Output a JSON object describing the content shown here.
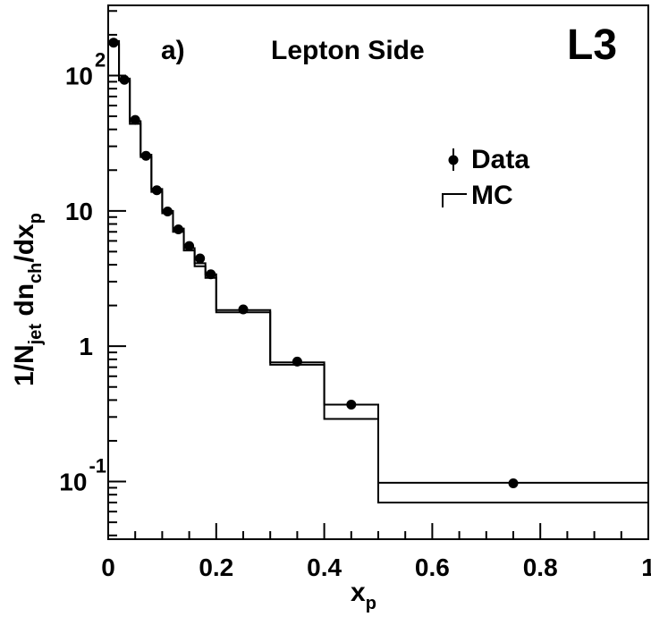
{
  "chart_data": {
    "type": "scatter",
    "panel_label": "a)",
    "title": "Lepton Side",
    "experiment_label": "L3",
    "xlabel": "x",
    "xlabel_sub": "p",
    "ylabel_parts": [
      "1/N",
      "jet",
      " dn",
      "ch",
      "/dx",
      "p"
    ],
    "xlim": [
      0,
      1
    ],
    "ylim": [
      0.0375,
      330
    ],
    "y_scale": "log",
    "grid": false,
    "legend_position": "top-right",
    "x_ticks": [
      {
        "value": 0,
        "label": "0"
      },
      {
        "value": 0.2,
        "label": "0.2"
      },
      {
        "value": 0.4,
        "label": "0.4"
      },
      {
        "value": 0.6,
        "label": "0.6"
      },
      {
        "value": 0.8,
        "label": "0.8"
      },
      {
        "value": 1,
        "label": "1"
      }
    ],
    "y_ticks": [
      {
        "value": 100,
        "label": "10",
        "exp": "2"
      },
      {
        "value": 10,
        "label": "10",
        "exp": ""
      },
      {
        "value": 1,
        "label": "1",
        "exp": ""
      },
      {
        "value": 0.1,
        "label": "10",
        "exp": "-1"
      }
    ],
    "series": [
      {
        "name": "Data",
        "kind": "points",
        "x": [
          0.01,
          0.03,
          0.05,
          0.07,
          0.09,
          0.11,
          0.13,
          0.15,
          0.17,
          0.19,
          0.25,
          0.35,
          0.45,
          0.75
        ],
        "y": [
          175,
          93,
          47,
          25.5,
          14.2,
          9.9,
          7.3,
          5.5,
          4.45,
          3.4,
          1.87,
          0.77,
          0.37,
          0.097
        ]
      },
      {
        "name": "MC",
        "kind": "histogram",
        "bin_edges": [
          0,
          0.02,
          0.04,
          0.06,
          0.08,
          0.1,
          0.12,
          0.14,
          0.16,
          0.18,
          0.2,
          0.3,
          0.4,
          0.5,
          1.0
        ],
        "upper": [
          180,
          95,
          46,
          26,
          14.5,
          10,
          7.4,
          5.3,
          4.1,
          3.4,
          1.85,
          0.76,
          0.37,
          0.098
        ],
        "lower": [
          170,
          92,
          44,
          25,
          13.8,
          9.6,
          7.0,
          5.1,
          3.9,
          3.2,
          1.78,
          0.73,
          0.29,
          0.07
        ]
      }
    ]
  }
}
